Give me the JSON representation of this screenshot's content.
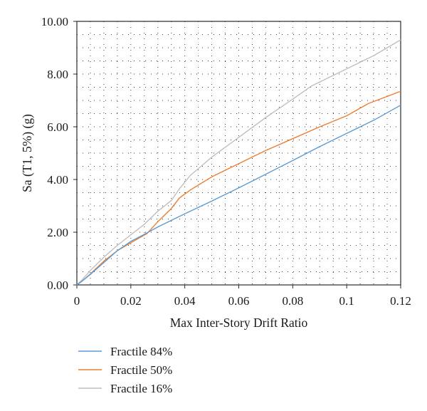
{
  "chart_data": {
    "type": "line",
    "title": "",
    "xlabel": "Max Inter-Story Drift Ratio",
    "ylabel": "Sa (T1, 5%) (g)",
    "xlim": [
      0,
      0.12
    ],
    "ylim": [
      0,
      10
    ],
    "x_ticks": [
      0,
      0.02,
      0.04,
      0.06,
      0.08,
      0.1,
      0.12
    ],
    "x_tick_labels": [
      "0",
      "0.02",
      "0.04",
      "0.06",
      "0.08",
      "0.1",
      "0.12"
    ],
    "y_ticks": [
      0,
      2,
      4,
      6,
      8,
      10
    ],
    "y_tick_labels": [
      "0.00",
      "2.00",
      "4.00",
      "6.00",
      "8.00",
      "10.00"
    ],
    "grid": "dotted",
    "legend_position": "bottom-left, below plot",
    "series": [
      {
        "name": "Fractile 84%",
        "color": "#5b9bd5",
        "x": [
          0,
          0.002,
          0.005,
          0.01,
          0.015,
          0.02,
          0.025,
          0.03,
          0.035,
          0.04,
          0.05,
          0.06,
          0.07,
          0.08,
          0.09,
          0.1,
          0.11,
          0.12
        ],
        "y": [
          0,
          0.15,
          0.4,
          0.85,
          1.3,
          1.65,
          1.92,
          2.2,
          2.45,
          2.7,
          3.18,
          3.68,
          4.2,
          4.72,
          5.25,
          5.75,
          6.25,
          6.82
        ]
      },
      {
        "name": "Fractile 50%",
        "color": "#ed7d31",
        "x": [
          0,
          0.002,
          0.005,
          0.01,
          0.015,
          0.02,
          0.026,
          0.03,
          0.035,
          0.038,
          0.042,
          0.05,
          0.06,
          0.07,
          0.08,
          0.09,
          0.1,
          0.108,
          0.12
        ],
        "y": [
          0,
          0.15,
          0.42,
          0.9,
          1.3,
          1.6,
          1.95,
          2.4,
          2.9,
          3.3,
          3.6,
          4.1,
          4.6,
          5.1,
          5.55,
          6.0,
          6.42,
          6.88,
          7.35
        ]
      },
      {
        "name": "Fractile 16%",
        "color": "#bfbfbf",
        "x": [
          0,
          0.002,
          0.005,
          0.01,
          0.015,
          0.02,
          0.025,
          0.03,
          0.035,
          0.038,
          0.042,
          0.05,
          0.06,
          0.07,
          0.08,
          0.087,
          0.1,
          0.11,
          0.12
        ],
        "y": [
          0,
          0.2,
          0.55,
          1.05,
          1.5,
          1.9,
          2.3,
          2.8,
          3.2,
          3.65,
          4.15,
          4.85,
          5.6,
          6.35,
          7.05,
          7.55,
          8.2,
          8.7,
          9.3
        ]
      }
    ]
  }
}
